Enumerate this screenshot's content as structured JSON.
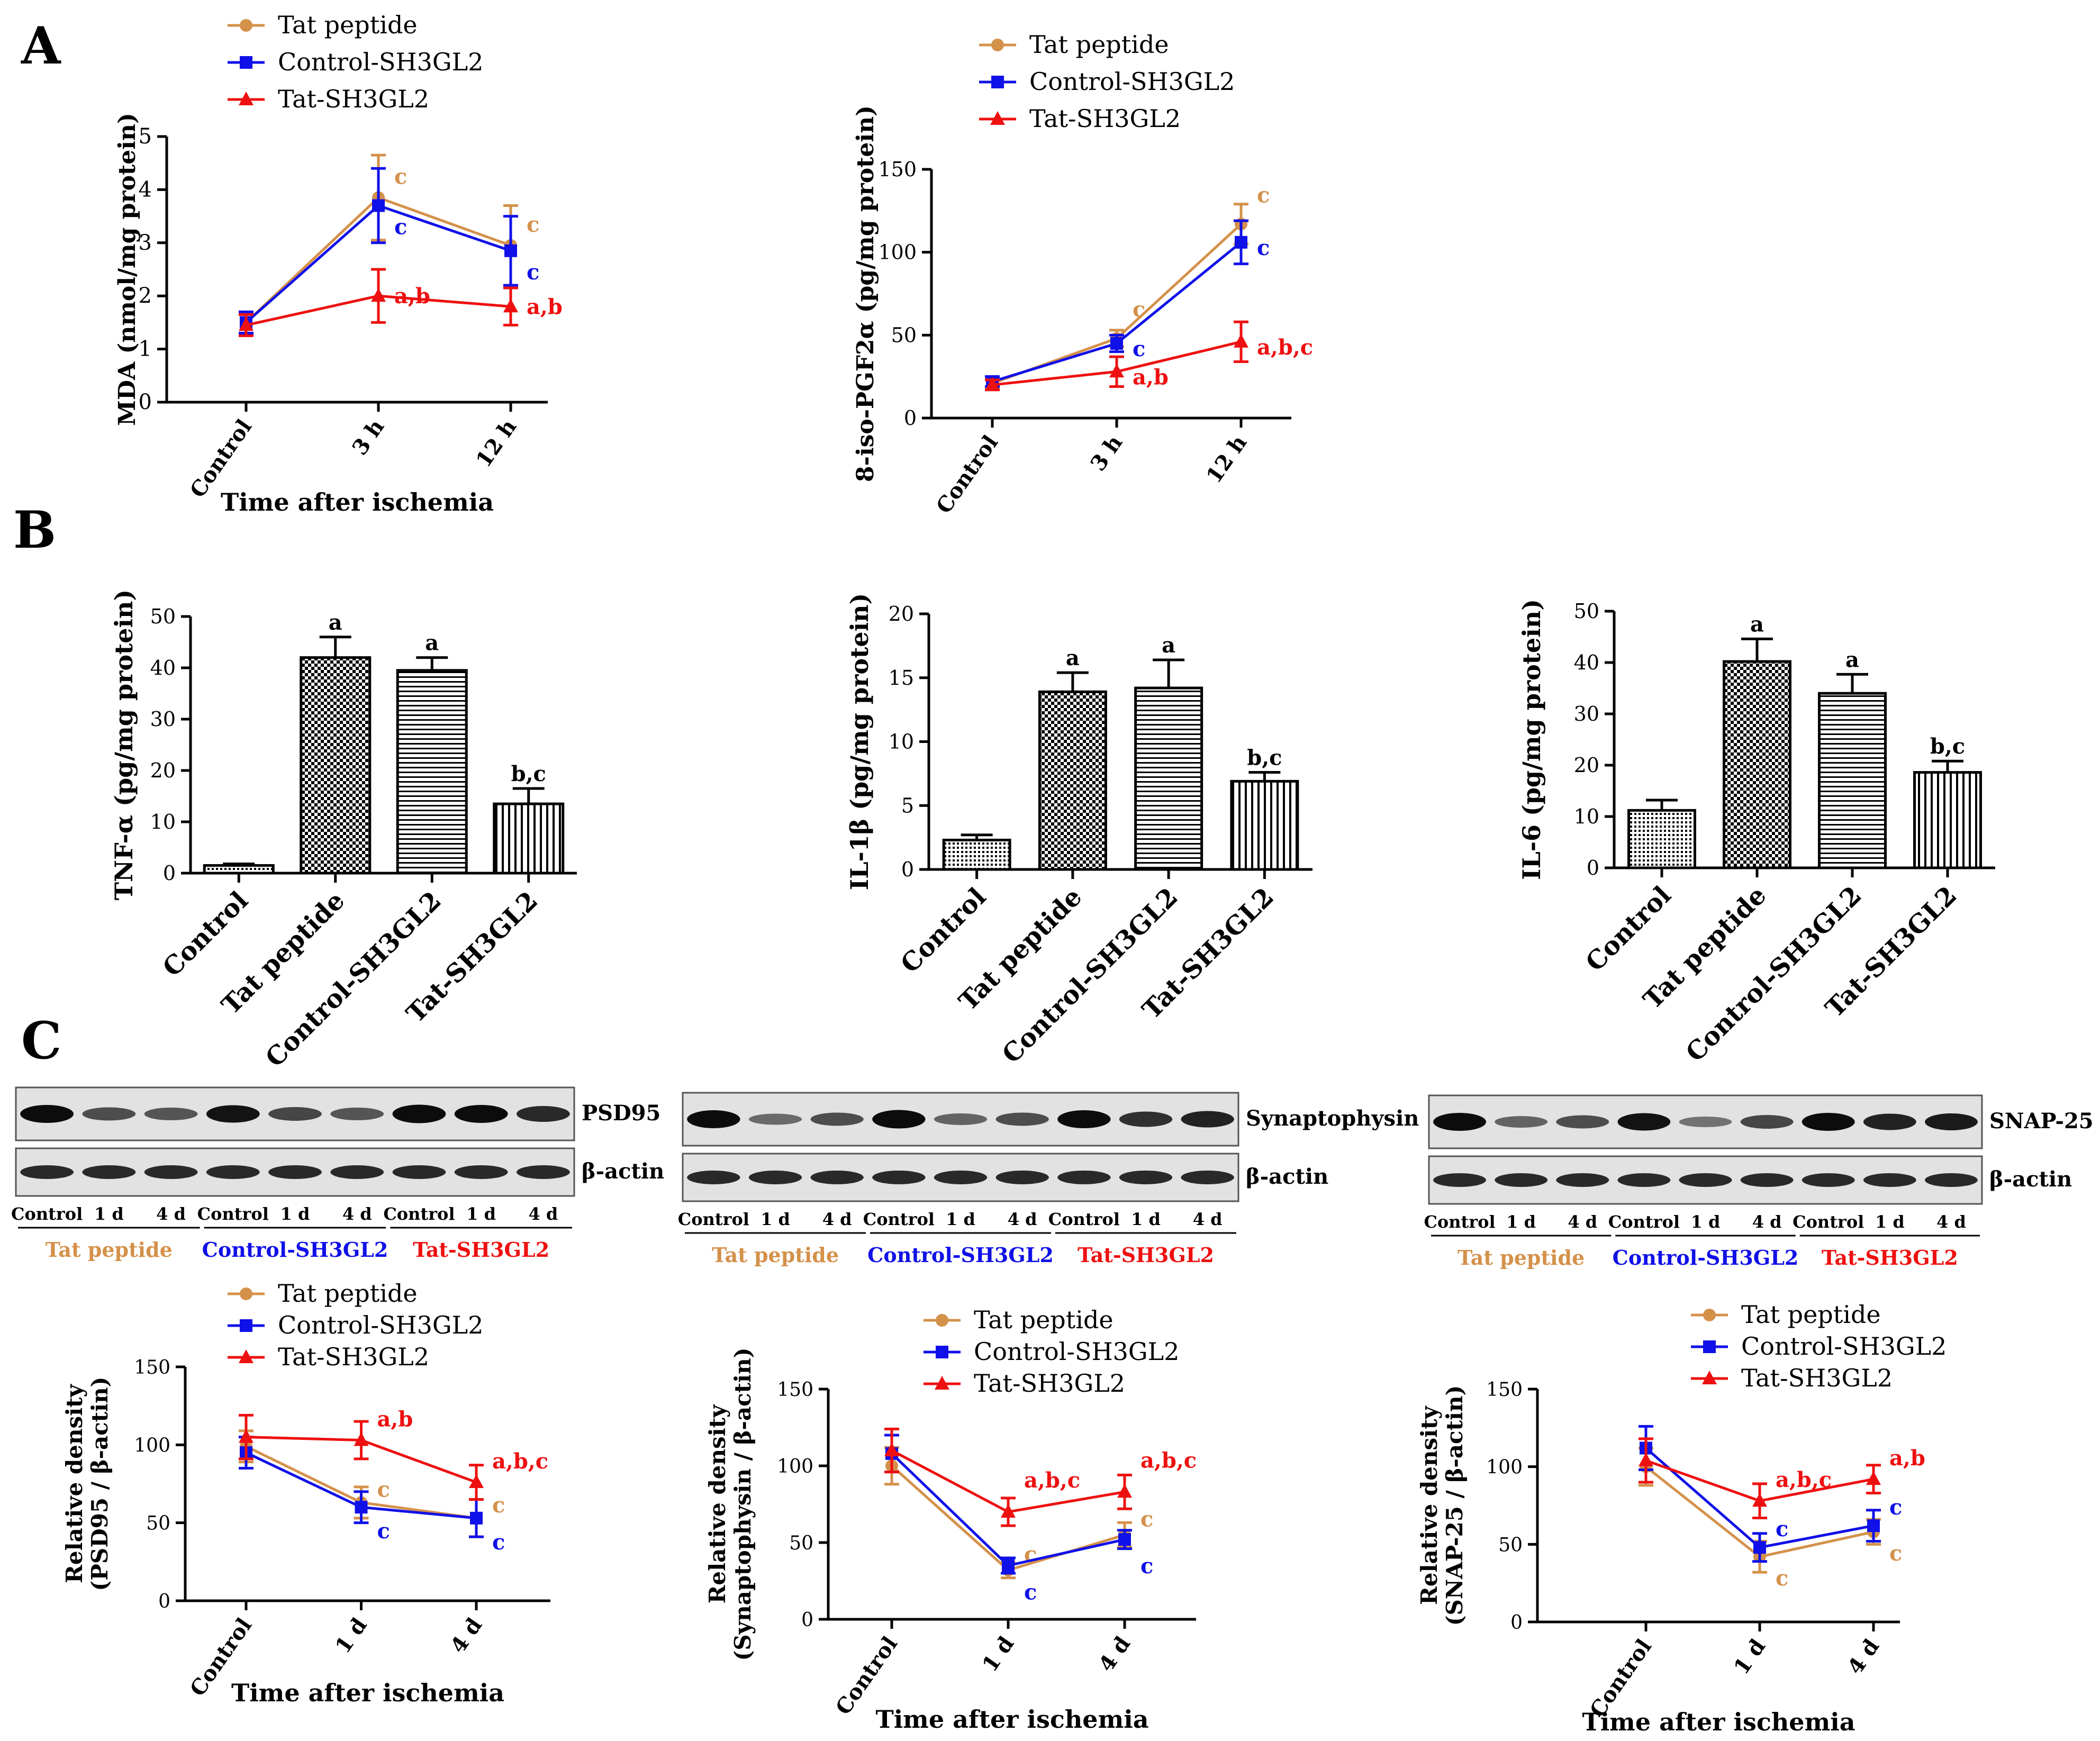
{
  "figure": {
    "panel_labels": [
      "A",
      "B",
      "C"
    ],
    "colors": {
      "tat": "#d4914a",
      "control": "#1010e8",
      "tatsh": "#ee1010",
      "axis": "#000000"
    }
  },
  "chart_data": [
    {
      "id": "mda",
      "type": "line",
      "panel": "A",
      "title": "",
      "xlabel": "Time after ischemia",
      "ylabel": "MDA (nmol/mg protein)",
      "categories": [
        "Control",
        "3 h",
        "12 h"
      ],
      "ylim": [
        0,
        5
      ],
      "yticks": [
        0,
        1,
        2,
        3,
        4,
        5
      ],
      "legend": [
        "Tat peptide",
        "Control-SH3GL2",
        "Tat-SH3GL2"
      ],
      "series": [
        {
          "name": "Tat peptide",
          "color": "tat",
          "marker": "circle",
          "values": [
            1.5,
            3.85,
            2.95
          ],
          "errors": [
            0.2,
            0.8,
            0.75
          ],
          "annotations": [
            "",
            "c",
            "c"
          ]
        },
        {
          "name": "Control-SH3GL2",
          "color": "control",
          "marker": "square",
          "values": [
            1.5,
            3.7,
            2.85
          ],
          "errors": [
            0.2,
            0.7,
            0.65
          ],
          "annotations": [
            "",
            "c",
            "c"
          ]
        },
        {
          "name": "Tat-SH3GL2",
          "color": "tatsh",
          "marker": "triangle",
          "values": [
            1.45,
            2.0,
            1.8
          ],
          "errors": [
            0.2,
            0.5,
            0.35
          ],
          "annotations": [
            "",
            "a,b",
            "a,b"
          ]
        }
      ]
    },
    {
      "id": "isop",
      "type": "line",
      "panel": "A",
      "title": "",
      "xlabel": "",
      "ylabel": "8-iso-PGF2α (pg/mg protein)",
      "categories": [
        "Control",
        "3 h",
        "12 h"
      ],
      "ylim": [
        0,
        150
      ],
      "yticks": [
        0,
        50,
        100,
        150
      ],
      "legend": [
        "Tat peptide",
        "Control-SH3GL2",
        "Tat-SH3GL2"
      ],
      "series": [
        {
          "name": "Tat peptide",
          "color": "tat",
          "marker": "circle",
          "values": [
            21,
            48,
            117
          ],
          "errors": [
            3,
            5,
            12
          ],
          "annotations": [
            "",
            "c",
            "c"
          ]
        },
        {
          "name": "Control-SH3GL2",
          "color": "control",
          "marker": "square",
          "values": [
            22,
            45,
            106
          ],
          "errors": [
            3,
            5,
            13
          ],
          "annotations": [
            "",
            "c",
            "c"
          ]
        },
        {
          "name": "Tat-SH3GL2",
          "color": "tatsh",
          "marker": "triangle",
          "values": [
            20,
            28,
            46
          ],
          "errors": [
            3,
            9,
            12
          ],
          "annotations": [
            "",
            "a,b",
            "a,b,c"
          ]
        }
      ]
    },
    {
      "id": "tnf",
      "type": "bar",
      "panel": "B",
      "title": "",
      "xlabel": "",
      "ylabel": "TNF-α (pg/mg protein)",
      "categories": [
        "Control",
        "Tat peptide",
        "Control-SH3GL2",
        "Tat-SH3GL2"
      ],
      "values": [
        1.5,
        42,
        39.5,
        13.5
      ],
      "errors": [
        0.3,
        4,
        2.5,
        3
      ],
      "annotations": [
        "",
        "a",
        "a",
        "b,c"
      ],
      "ylim": [
        0,
        50
      ],
      "yticks": [
        0,
        10,
        20,
        30,
        40,
        50
      ]
    },
    {
      "id": "il1b",
      "type": "bar",
      "panel": "B",
      "title": "",
      "xlabel": "",
      "ylabel": "IL-1β (pg/mg protein)",
      "categories": [
        "Control",
        "Tat peptide",
        "Control-SH3GL2",
        "Tat-SH3GL2"
      ],
      "values": [
        2.3,
        13.9,
        14.2,
        6.9
      ],
      "errors": [
        0.4,
        1.5,
        2.2,
        0.7
      ],
      "annotations": [
        "",
        "a",
        "a",
        "b,c"
      ],
      "ylim": [
        0,
        20
      ],
      "yticks": [
        0,
        5,
        10,
        15,
        20
      ]
    },
    {
      "id": "il6",
      "type": "bar",
      "panel": "B",
      "title": "",
      "xlabel": "",
      "ylabel": "IL-6 (pg/mg protein)",
      "categories": [
        "Control",
        "Tat peptide",
        "Control-SH3GL2",
        "Tat-SH3GL2"
      ],
      "values": [
        11.2,
        40.2,
        34,
        18.6
      ],
      "errors": [
        2,
        4.4,
        3.7,
        2.2
      ],
      "annotations": [
        "",
        "a",
        "a",
        "b,c"
      ],
      "ylim": [
        0,
        50
      ],
      "yticks": [
        0,
        10,
        20,
        30,
        40,
        50
      ]
    },
    {
      "id": "psd95",
      "type": "line",
      "panel": "C",
      "title": "",
      "xlabel": "Time after ischemia",
      "ylabel": "Relative density",
      "ylabel2": "(PSD95 / β-actin)",
      "categories": [
        "Control",
        "1 d",
        "4 d"
      ],
      "ylim": [
        0,
        150
      ],
      "yticks": [
        0,
        50,
        100,
        150
      ],
      "legend": [
        "Tat peptide",
        "Control-SH3GL2",
        "Tat-SH3GL2"
      ],
      "series": [
        {
          "name": "Tat peptide",
          "color": "tat",
          "marker": "circle",
          "values": [
            99,
            63,
            53
          ],
          "errors": [
            10,
            10,
            12
          ],
          "annotations": [
            "",
            "c",
            "c"
          ]
        },
        {
          "name": "Control-SH3GL2",
          "color": "control",
          "marker": "square",
          "values": [
            95,
            60,
            53
          ],
          "errors": [
            10,
            10,
            12
          ],
          "annotations": [
            "",
            "c",
            "c"
          ]
        },
        {
          "name": "Tat-SH3GL2",
          "color": "tatsh",
          "marker": "triangle",
          "values": [
            105,
            103,
            76
          ],
          "errors": [
            14,
            12,
            11
          ],
          "annotations": [
            "",
            "a,b",
            "a,b,c"
          ]
        }
      ]
    },
    {
      "id": "syn",
      "type": "line",
      "panel": "C",
      "title": "",
      "xlabel": "Time after ischemia",
      "ylabel": "Relative density",
      "ylabel2": "(Synaptophysin / β-actin)",
      "categories": [
        "Control",
        "1 d",
        "4 d"
      ],
      "ylim": [
        0,
        150
      ],
      "yticks": [
        0,
        50,
        100,
        150
      ],
      "legend": [
        "Tat peptide",
        "Control-SH3GL2",
        "Tat-SH3GL2"
      ],
      "series": [
        {
          "name": "Tat peptide",
          "color": "tat",
          "marker": "circle",
          "values": [
            100,
            32,
            55
          ],
          "errors": [
            12,
            5,
            8
          ],
          "annotations": [
            "",
            "c",
            "c"
          ]
        },
        {
          "name": "Control-SH3GL2",
          "color": "control",
          "marker": "square",
          "values": [
            108,
            35,
            52
          ],
          "errors": [
            12,
            5,
            6
          ],
          "annotations": [
            "",
            "c",
            "c"
          ]
        },
        {
          "name": "Tat-SH3GL2",
          "color": "tatsh",
          "marker": "triangle",
          "values": [
            110,
            70,
            83
          ],
          "errors": [
            14,
            9,
            11
          ],
          "annotations": [
            "",
            "a,b,c",
            "a,b,c"
          ]
        }
      ]
    },
    {
      "id": "snap",
      "type": "line",
      "panel": "C",
      "title": "",
      "xlabel": "Time after ischemia",
      "ylabel": "Relative density",
      "ylabel2": "(SNAP-25 / β-actin)",
      "categories": [
        "Control",
        "1 d",
        "4 d"
      ],
      "ylim": [
        0,
        150
      ],
      "yticks": [
        0,
        50,
        100,
        150
      ],
      "legend": [
        "Tat peptide",
        "Control-SH3GL2",
        "Tat-SH3GL2"
      ],
      "series": [
        {
          "name": "Tat peptide",
          "color": "tat",
          "marker": "circle",
          "values": [
            100,
            42,
            58
          ],
          "errors": [
            12,
            10,
            8
          ],
          "annotations": [
            "",
            "c",
            "c"
          ]
        },
        {
          "name": "Control-SH3GL2",
          "color": "control",
          "marker": "square",
          "values": [
            112,
            48,
            62
          ],
          "errors": [
            14,
            9,
            10
          ],
          "annotations": [
            "",
            "c",
            "c"
          ]
        },
        {
          "name": "Tat-SH3GL2",
          "color": "tatsh",
          "marker": "triangle",
          "values": [
            104,
            78,
            92
          ],
          "errors": [
            14,
            11,
            9
          ],
          "annotations": [
            "",
            "a,b,c",
            "a,b"
          ]
        }
      ]
    }
  ],
  "blots": [
    {
      "id": "blot1",
      "protein": "PSD95",
      "loading": "β-actin",
      "lanes": [
        "Control",
        "1 d",
        "4 d",
        "Control",
        "1 d",
        "4 d",
        "Control",
        "1 d",
        "4 d"
      ],
      "groups": [
        "Tat peptide",
        "Control-SH3GL2",
        "Tat-SH3GL2"
      ],
      "intensity": [
        1.0,
        0.55,
        0.5,
        0.95,
        0.6,
        0.5,
        1.05,
        1.0,
        0.8
      ]
    },
    {
      "id": "blot2",
      "protein": "Synaptophysin",
      "loading": "β-actin",
      "lanes": [
        "Control",
        "1 d",
        "4 d",
        "Control",
        "1 d",
        "4 d",
        "Control",
        "1 d",
        "4 d"
      ],
      "groups": [
        "Tat peptide",
        "Control-SH3GL2",
        "Tat-SH3GL2"
      ],
      "intensity": [
        1.0,
        0.35,
        0.55,
        1.05,
        0.4,
        0.55,
        1.0,
        0.75,
        0.85
      ]
    },
    {
      "id": "blot3",
      "protein": "SNAP-25",
      "loading": "β-actin",
      "lanes": [
        "Control",
        "1 d",
        "4 d",
        "Control",
        "1 d",
        "4 d",
        "Control",
        "1 d",
        "4 d"
      ],
      "groups": [
        "Tat peptide",
        "Control-SH3GL2",
        "Tat-SH3GL2"
      ],
      "intensity": [
        1.0,
        0.4,
        0.55,
        0.95,
        0.3,
        0.6,
        1.0,
        0.85,
        0.9
      ]
    }
  ]
}
